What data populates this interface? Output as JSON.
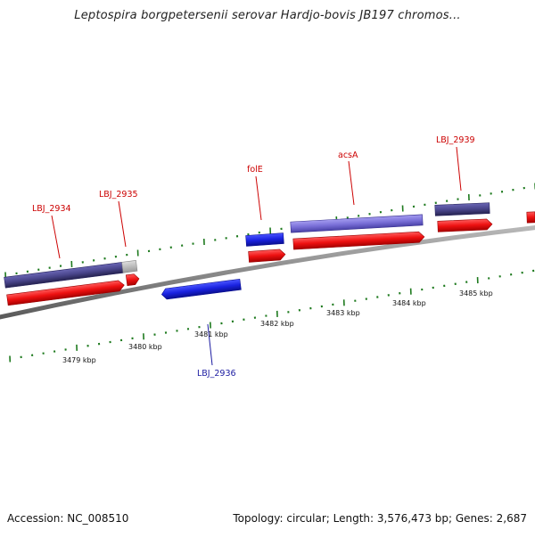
{
  "title": "Leptospira borgpetersenii serovar Hardjo-bovis JB197 chromos...",
  "footer": {
    "accession": "Accession: NC_008510",
    "summary": "Topology: circular; Length: 3,576,473 bp; Genes: 2,687"
  },
  "colors": {
    "backbone": "#8a8a8a",
    "forward_gene": "#e81010",
    "reverse_gene": "#1a22e0",
    "forward_feature": "#4a468c",
    "forward_feature_light": "#7a70d8",
    "pseudo": "#bdbdbd",
    "tick": "#1e7a1e",
    "label_forward": "#cc0000",
    "label_reverse": "#1a1aa0"
  },
  "scale_labels": [
    "3479 kbp",
    "3480 kbp",
    "3481 kbp",
    "3482 kbp",
    "3483 kbp",
    "3484 kbp",
    "3485 kbp"
  ],
  "gene_labels": {
    "lbj_2934": "LBJ_2934",
    "lbj_2935": "LBJ_2935",
    "folE": "folE",
    "acsA": "acsA",
    "lbj_2939": "LBJ_2939",
    "lbj_2936": "LBJ_2936"
  }
}
